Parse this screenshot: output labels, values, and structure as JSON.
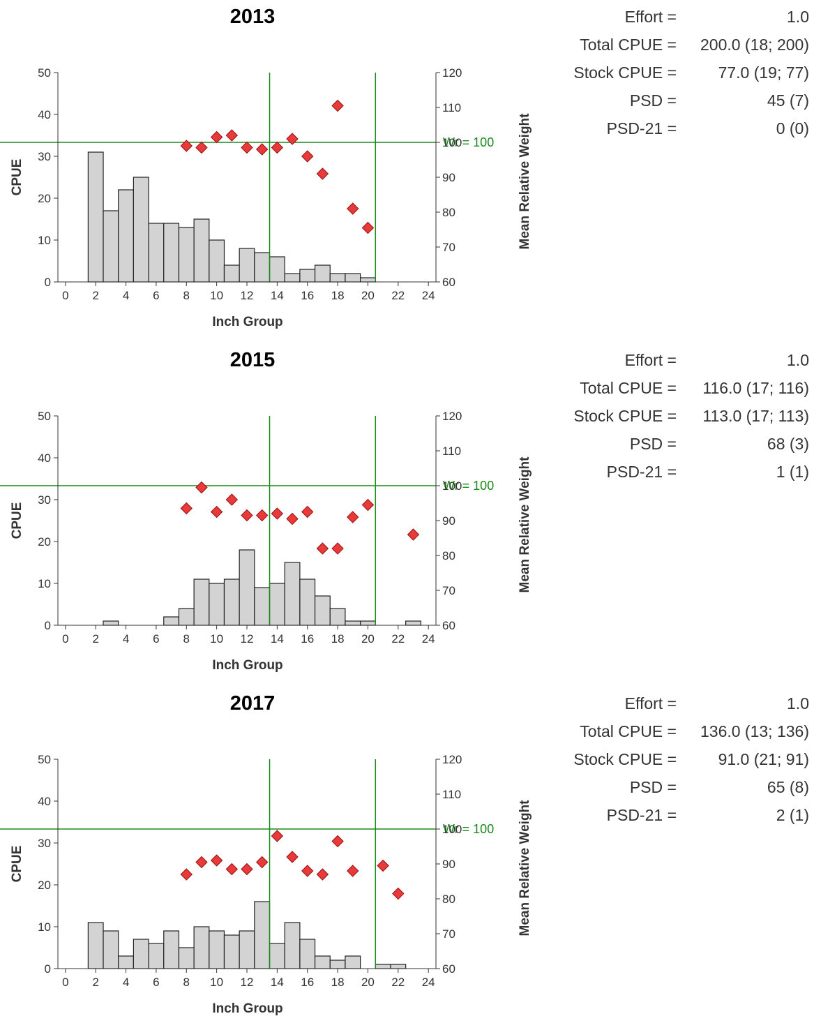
{
  "chart_data": [
    {
      "type": "bar",
      "title": "2013",
      "xlabel": "Inch Group",
      "ylabel": "CPUE",
      "y2label": "Mean Relative Weight",
      "xlim": [
        -0.5,
        24.5
      ],
      "ylim": [
        0,
        50
      ],
      "y2lim": [
        60,
        120
      ],
      "xticks": [
        "0",
        "2",
        "4",
        "6",
        "8",
        "10",
        "12",
        "14",
        "16",
        "18",
        "20",
        "22",
        "24"
      ],
      "yticks": [
        "0",
        "10",
        "20",
        "30",
        "40",
        "50"
      ],
      "y2ticks": [
        "60",
        "70",
        "80",
        "90",
        "100",
        "110",
        "120"
      ],
      "reference_vertical_x": [
        13.5,
        20.5
      ],
      "reference_wr": {
        "value": 100,
        "label": "Wr = 100"
      },
      "series": [
        {
          "name": "CPUE",
          "type": "bar",
          "x": [
            1,
            2,
            3,
            4,
            5,
            6,
            7,
            8,
            9,
            10,
            11,
            12,
            13,
            14,
            15,
            16,
            17,
            18,
            19,
            20,
            21,
            22,
            23,
            24
          ],
          "values": [
            0,
            31,
            17,
            22,
            25,
            14,
            14,
            13,
            15,
            10,
            4,
            8,
            7,
            6,
            2,
            3,
            4,
            2,
            2,
            1,
            0,
            0,
            0,
            0
          ]
        },
        {
          "name": "Mean Relative Weight",
          "type": "scatter",
          "x": [
            8,
            9,
            10,
            11,
            12,
            13,
            14,
            15,
            16,
            17,
            18,
            19,
            20
          ],
          "values": [
            99,
            98.5,
            101.5,
            102,
            98.5,
            98,
            98.5,
            101,
            96,
            91,
            110.5,
            81,
            75.5
          ]
        }
      ],
      "stats": [
        {
          "label": "Effort =",
          "value": "1.0"
        },
        {
          "label": "Total CPUE =",
          "value": "200.0 (18; 200)"
        },
        {
          "label": "Stock CPUE =",
          "value": "77.0 (19; 77)"
        },
        {
          "label": "PSD =",
          "value": "45 (7)"
        },
        {
          "label": "PSD-21 =",
          "value": "0 (0)"
        }
      ]
    },
    {
      "type": "bar",
      "title": "2015",
      "xlabel": "Inch Group",
      "ylabel": "CPUE",
      "y2label": "Mean Relative Weight",
      "xlim": [
        -0.5,
        24.5
      ],
      "ylim": [
        0,
        50
      ],
      "y2lim": [
        60,
        120
      ],
      "xticks": [
        "0",
        "2",
        "4",
        "6",
        "8",
        "10",
        "12",
        "14",
        "16",
        "18",
        "20",
        "22",
        "24"
      ],
      "yticks": [
        "0",
        "10",
        "20",
        "30",
        "40",
        "50"
      ],
      "y2ticks": [
        "60",
        "70",
        "80",
        "90",
        "100",
        "110",
        "120"
      ],
      "reference_vertical_x": [
        13.5,
        20.5
      ],
      "reference_wr": {
        "value": 100,
        "label": "Wr = 100"
      },
      "series": [
        {
          "name": "CPUE",
          "type": "bar",
          "x": [
            1,
            2,
            3,
            4,
            5,
            6,
            7,
            8,
            9,
            10,
            11,
            12,
            13,
            14,
            15,
            16,
            17,
            18,
            19,
            20,
            21,
            22,
            23,
            24
          ],
          "values": [
            0,
            0,
            1,
            0,
            0,
            0,
            2,
            4,
            11,
            10,
            11,
            18,
            9,
            10,
            15,
            11,
            7,
            4,
            1,
            1,
            0,
            0,
            1,
            0
          ]
        },
        {
          "name": "Mean Relative Weight",
          "type": "scatter",
          "x": [
            8,
            9,
            10,
            11,
            12,
            13,
            14,
            15,
            16,
            17,
            18,
            19,
            20,
            23
          ],
          "values": [
            93.5,
            99.5,
            92.5,
            96,
            91.5,
            91.5,
            92,
            90.5,
            92.5,
            82,
            82,
            91,
            94.5,
            86
          ]
        }
      ],
      "stats": [
        {
          "label": "Effort =",
          "value": "1.0"
        },
        {
          "label": "Total CPUE =",
          "value": "116.0 (17; 116)"
        },
        {
          "label": "Stock CPUE =",
          "value": "113.0 (17; 113)"
        },
        {
          "label": "PSD =",
          "value": "68 (3)"
        },
        {
          "label": "PSD-21 =",
          "value": "1 (1)"
        }
      ]
    },
    {
      "type": "bar",
      "title": "2017",
      "xlabel": "Inch Group",
      "ylabel": "CPUE",
      "y2label": "Mean Relative Weight",
      "xlim": [
        -0.5,
        24.5
      ],
      "ylim": [
        0,
        50
      ],
      "y2lim": [
        60,
        120
      ],
      "xticks": [
        "0",
        "2",
        "4",
        "6",
        "8",
        "10",
        "12",
        "14",
        "16",
        "18",
        "20",
        "22",
        "24"
      ],
      "yticks": [
        "0",
        "10",
        "20",
        "30",
        "40",
        "50"
      ],
      "y2ticks": [
        "60",
        "70",
        "80",
        "90",
        "100",
        "110",
        "120"
      ],
      "reference_vertical_x": [
        13.5,
        20.5
      ],
      "reference_wr": {
        "value": 100,
        "label": "Wr = 100"
      },
      "series": [
        {
          "name": "CPUE",
          "type": "bar",
          "x": [
            1,
            2,
            3,
            4,
            5,
            6,
            7,
            8,
            9,
            10,
            11,
            12,
            13,
            14,
            15,
            16,
            17,
            18,
            19,
            20,
            21,
            22,
            23,
            24
          ],
          "values": [
            0,
            11,
            9,
            3,
            7,
            6,
            9,
            5,
            10,
            9,
            8,
            9,
            16,
            6,
            11,
            7,
            3,
            2,
            3,
            0,
            1,
            1,
            0,
            0
          ]
        },
        {
          "name": "Mean Relative Weight",
          "type": "scatter",
          "x": [
            8,
            9,
            10,
            11,
            12,
            13,
            14,
            15,
            16,
            17,
            18,
            19,
            21,
            22
          ],
          "values": [
            87,
            90.5,
            91,
            88.5,
            88.5,
            90.5,
            98,
            92,
            88,
            87,
            96.5,
            88,
            89.5,
            81.5
          ]
        }
      ],
      "stats": [
        {
          "label": "Effort =",
          "value": "1.0"
        },
        {
          "label": "Total CPUE =",
          "value": "136.0 (13; 136)"
        },
        {
          "label": "Stock CPUE =",
          "value": "91.0 (21; 91)"
        },
        {
          "label": "PSD =",
          "value": "65 (8)"
        },
        {
          "label": "PSD-21 =",
          "value": "2 (1)"
        }
      ]
    }
  ],
  "colors": {
    "bar_fill": "#d3d3d3",
    "bar_stroke": "#222222",
    "marker_fill": "#e83a3a",
    "marker_stroke": "#9a1010",
    "reference_line": "#1a8a1a",
    "axis": "#333333"
  }
}
